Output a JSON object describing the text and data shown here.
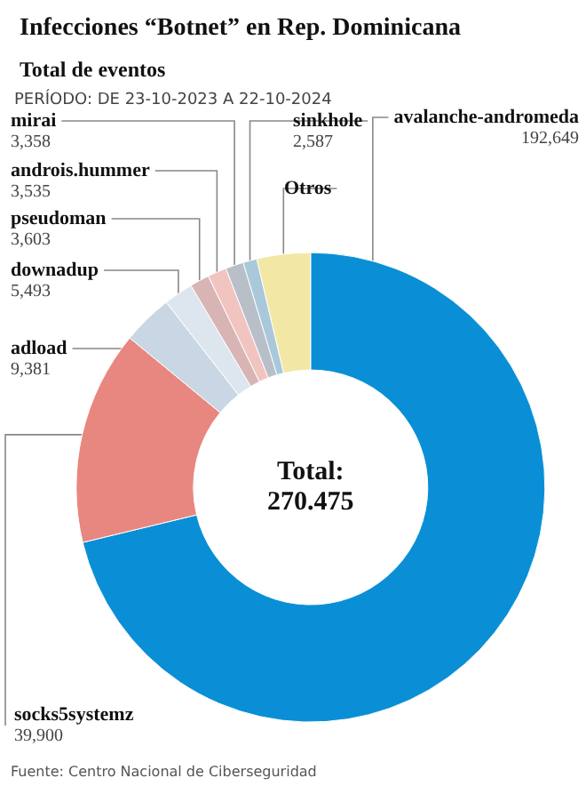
{
  "chart_data": {
    "type": "donut",
    "title": "Infecciones “Botnet” en Rep. Dominicana",
    "subtitle": "Total de eventos",
    "annotations": [
      "PERÍODO: DE 23-10-2023 A 22-10-2024",
      "Total:\n270.475",
      "Fuente: Centro Nacional de Ciberseguridad"
    ],
    "categories": [
      "avalanche-andromeda",
      "socks5systemz",
      "adload",
      "downadup",
      "pseudoman",
      "androis.hummer",
      "mirai",
      "sinkhole",
      "Otros"
    ],
    "values": [
      192649,
      39900,
      9381,
      5493,
      3603,
      3535,
      3358,
      2587,
      9969
    ],
    "value_labels": [
      "192,649",
      "39,900",
      "9,381",
      "5,493",
      "3,603",
      "3,535",
      "3,358",
      "2,587",
      null
    ],
    "colors": [
      "#0a8fd6",
      "#e8877f",
      "#c9d6e3",
      "#dde6ee",
      "#d8b4b4",
      "#f2c4c0",
      "#b9bfc8",
      "#a9c9da",
      "#f3e7a6"
    ],
    "legend": false
  }
}
